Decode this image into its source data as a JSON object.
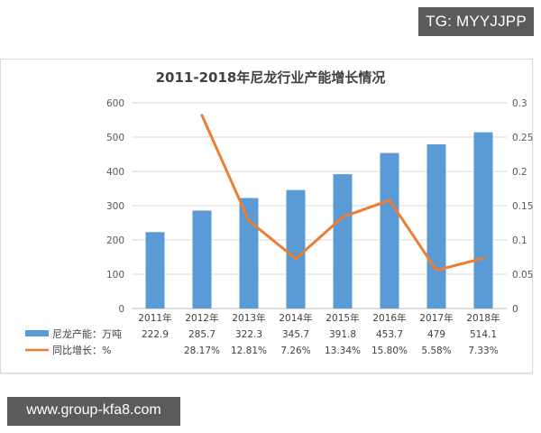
{
  "watermark_top": "TG: MYYJJPP",
  "watermark_bottom": "www.group-kfa8.com",
  "chart_data": {
    "type": "bar+line",
    "title": "2011-2018年尼龙行业产能增长情况",
    "categories": [
      "2011年",
      "2012年",
      "2013年",
      "2014年",
      "2015年",
      "2016年",
      "2017年",
      "2018年"
    ],
    "series": [
      {
        "name": "尼龙产能：万吨",
        "type": "bar",
        "axis": "left",
        "color": "#5b9bd5",
        "values": [
          222.9,
          285.7,
          322.3,
          345.7,
          391.8,
          453.7,
          479,
          514.1
        ],
        "labels": [
          "222.9",
          "285.7",
          "322.3",
          "345.7",
          "391.8",
          "453.7",
          "479",
          "514.1"
        ]
      },
      {
        "name": "同比增长：%",
        "type": "line",
        "axis": "right",
        "color": "#ed7d31",
        "values": [
          null,
          0.2817,
          0.1281,
          0.0726,
          0.1334,
          0.158,
          0.0558,
          0.0733
        ],
        "labels": [
          "",
          "28.17%",
          "12.81%",
          "7.26%",
          "13.34%",
          "15.80%",
          "5.58%",
          "7.33%"
        ]
      }
    ],
    "y_left": {
      "ylim": [
        0,
        600
      ],
      "ticks": [
        "0",
        "100",
        "200",
        "300",
        "400",
        "500",
        "600"
      ]
    },
    "y_right": {
      "ylim": [
        0,
        0.3
      ],
      "ticks": [
        "0",
        "0.05",
        "0.1",
        "0.15",
        "0.2",
        "0.25",
        "0.3"
      ]
    },
    "grid": true,
    "legend_position": "data-table-bottom"
  }
}
